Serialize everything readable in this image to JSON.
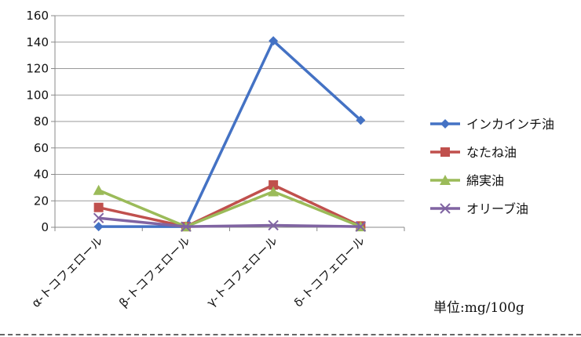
{
  "chart_data": {
    "type": "line",
    "categories": [
      "α-トコフェロール",
      "β-トコフェロール",
      "γ-トコフェロール",
      "δ-トコフェロール"
    ],
    "series": [
      {
        "name": "インカインチ油",
        "values": [
          0.5,
          0.5,
          141,
          81
        ],
        "color": "#4472C4",
        "marker": "diamond"
      },
      {
        "name": "なたね油",
        "values": [
          15,
          0.5,
          32,
          1
        ],
        "color": "#C0504D",
        "marker": "square"
      },
      {
        "name": "綿実油",
        "values": [
          28,
          0.5,
          27,
          0.5
        ],
        "color": "#9BBB59",
        "marker": "triangle"
      },
      {
        "name": "オリーブ油",
        "values": [
          7,
          0.5,
          1.5,
          0.5
        ],
        "color": "#8064A2",
        "marker": "x"
      }
    ],
    "yticks": [
      0,
      20,
      40,
      60,
      80,
      100,
      120,
      140,
      160
    ],
    "ylim": [
      0,
      160
    ],
    "grid": true,
    "legend": "right",
    "unit_note": "単位:mg/100g"
  }
}
